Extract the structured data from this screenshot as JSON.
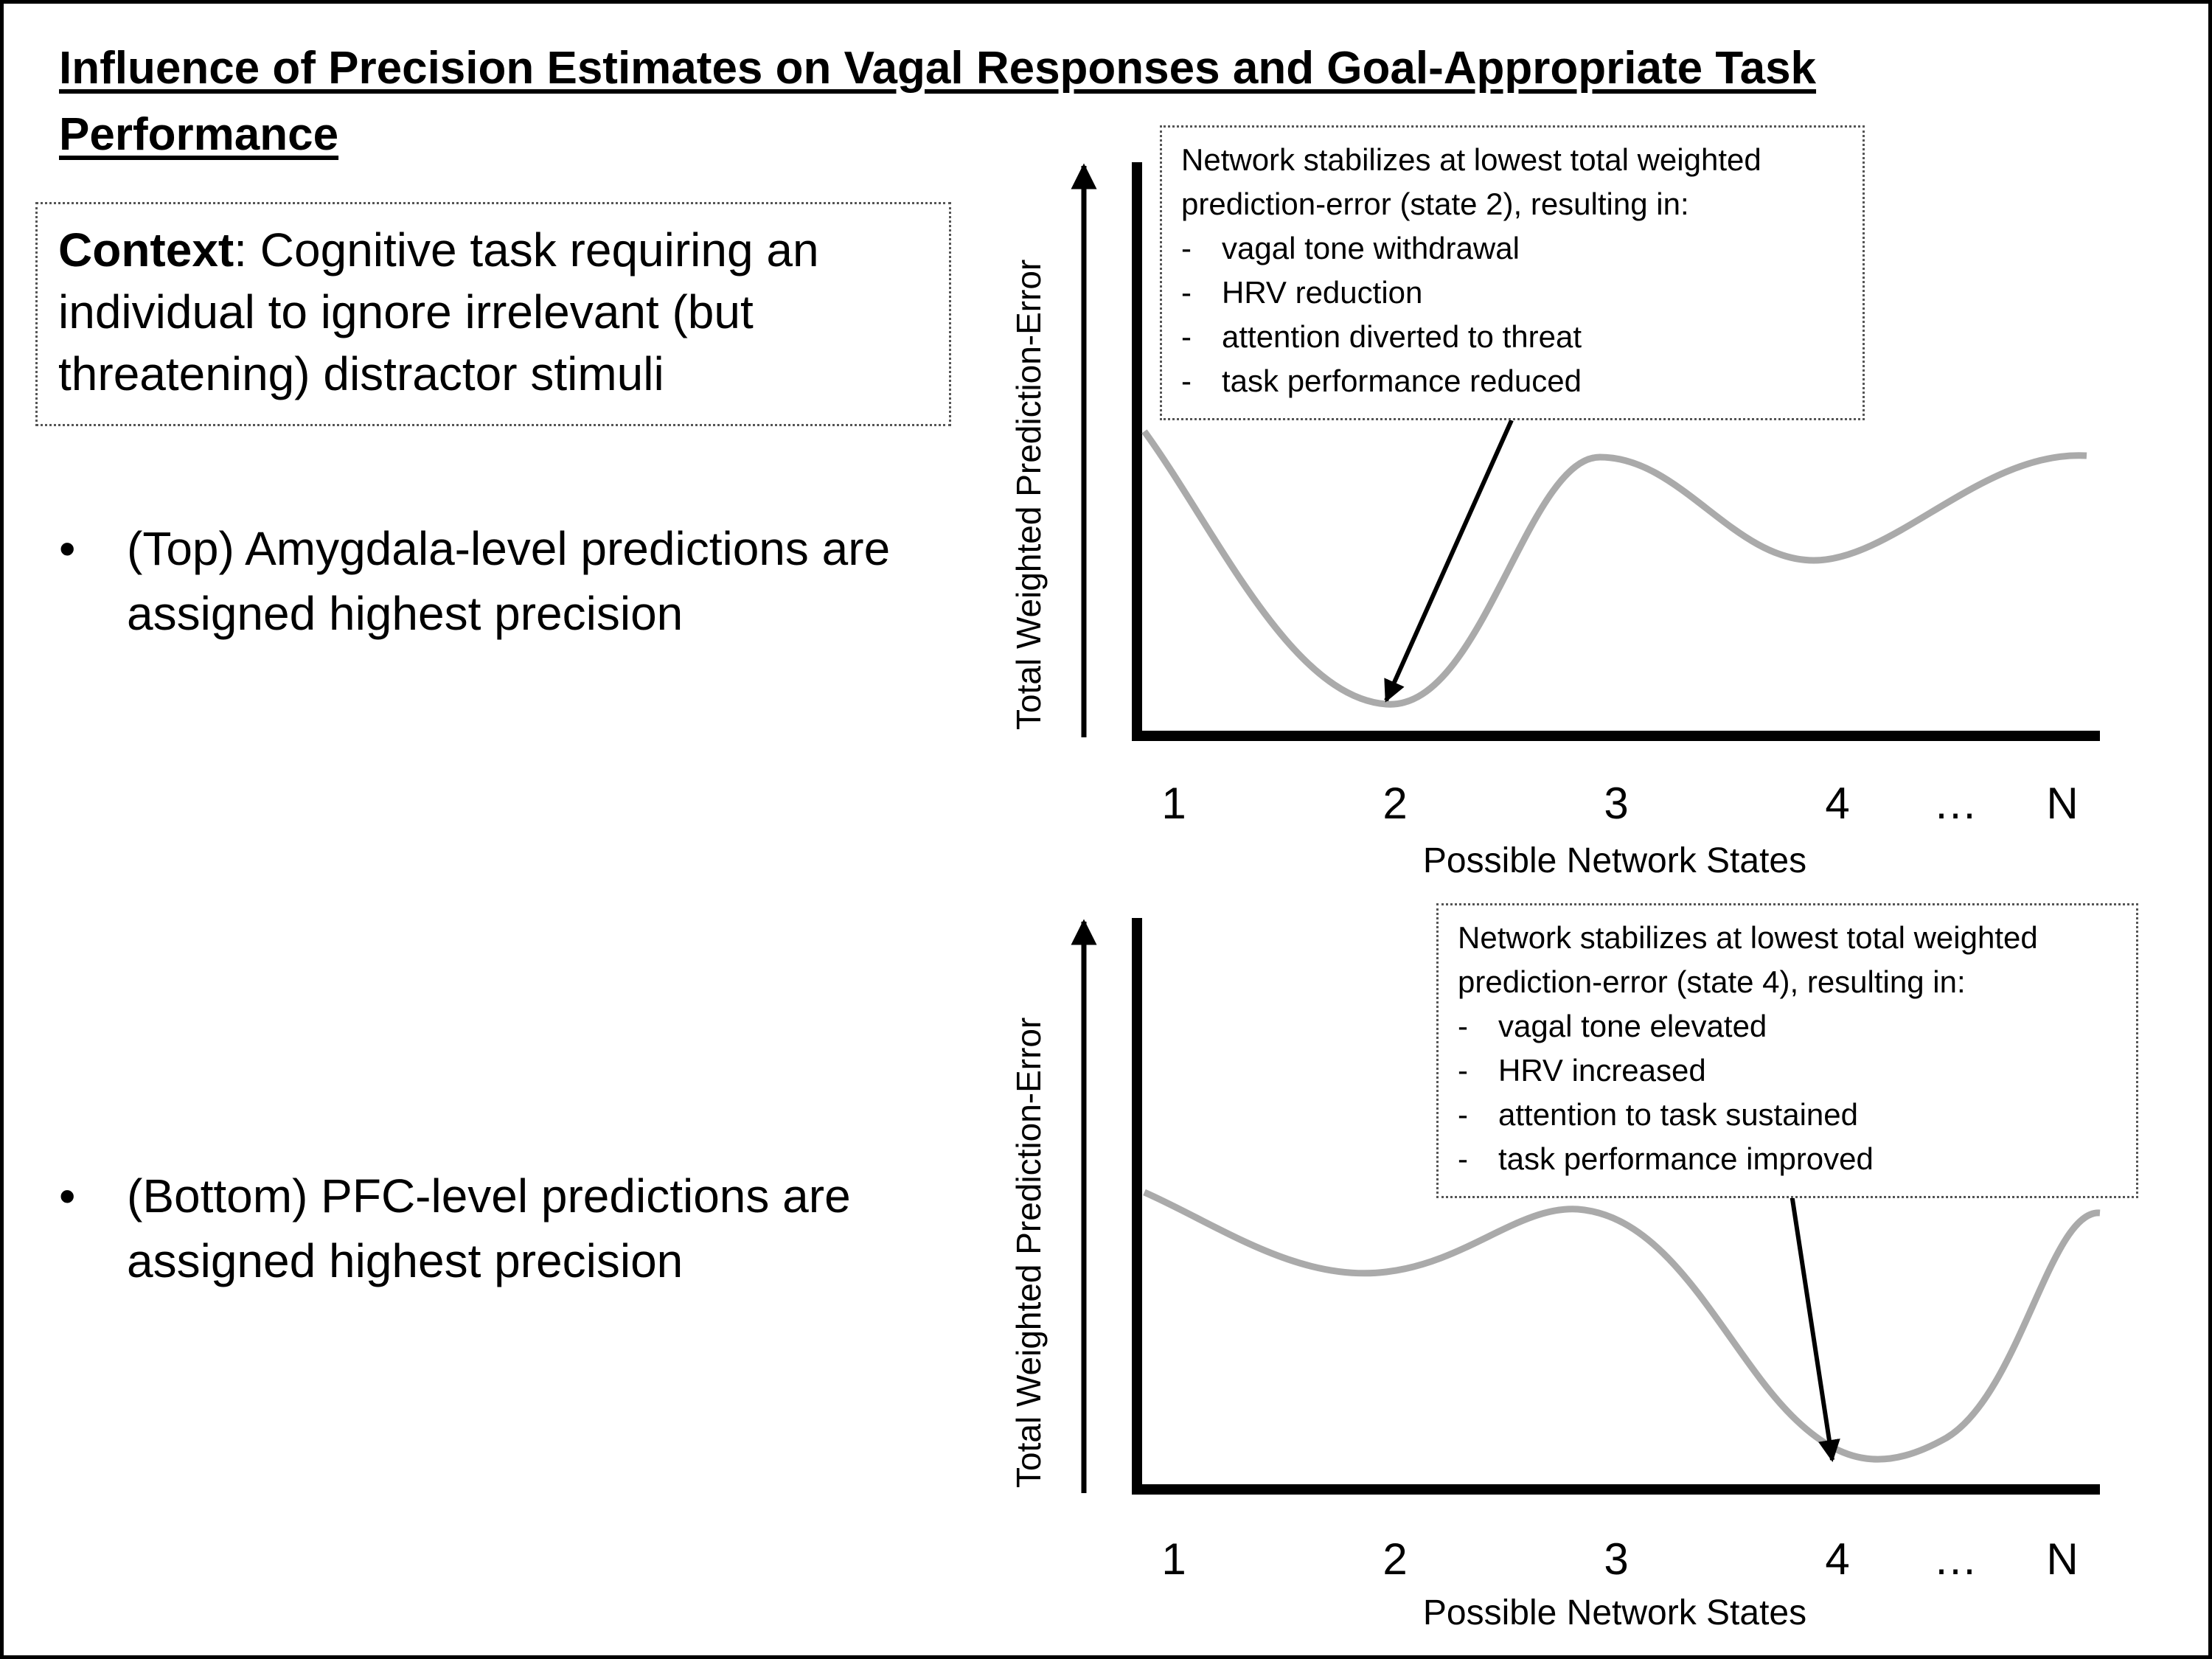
{
  "title": "Influence of Precision Estimates on Vagal Responses and Goal-Appropriate Task Performance",
  "context": {
    "label": "Context",
    "text": ": Cognitive task requiring an individual to ignore irrelevant (but threatening) distractor stimuli"
  },
  "bullets": [
    {
      "marker": "•",
      "text": "(Top) Amygdala-level predictions are assigned highest precision"
    },
    {
      "marker": "•",
      "text": "(Bottom) PFC-level predictions are assigned highest precision"
    }
  ],
  "panels": [
    {
      "ylabel": "Total Weighted Prediction-Error",
      "xlabel": "Possible Network States",
      "ticks": [
        "1",
        "2",
        "3",
        "4",
        "…",
        "N"
      ],
      "annotation": {
        "header": [
          "Network stabilizes at lowest total weighted",
          "prediction-error (state 2), resulting in:"
        ],
        "items": [
          "vagal tone withdrawal",
          "HRV reduction",
          "attention diverted to threat",
          "task performance reduced"
        ]
      }
    },
    {
      "ylabel": "Total Weighted Prediction-Error",
      "xlabel": "Possible Network States",
      "ticks": [
        "1",
        "2",
        "3",
        "4",
        "…",
        "N"
      ],
      "annotation": {
        "header": [
          "Network stabilizes at lowest total weighted",
          "prediction-error (state 4), resulting in:"
        ],
        "items": [
          "vagal tone elevated",
          "HRV increased",
          "attention to task sustained",
          "task performance improved"
        ]
      }
    }
  ],
  "colors": {
    "curve": "#aaaaaa",
    "axis": "#000000",
    "border": "#555555"
  }
}
